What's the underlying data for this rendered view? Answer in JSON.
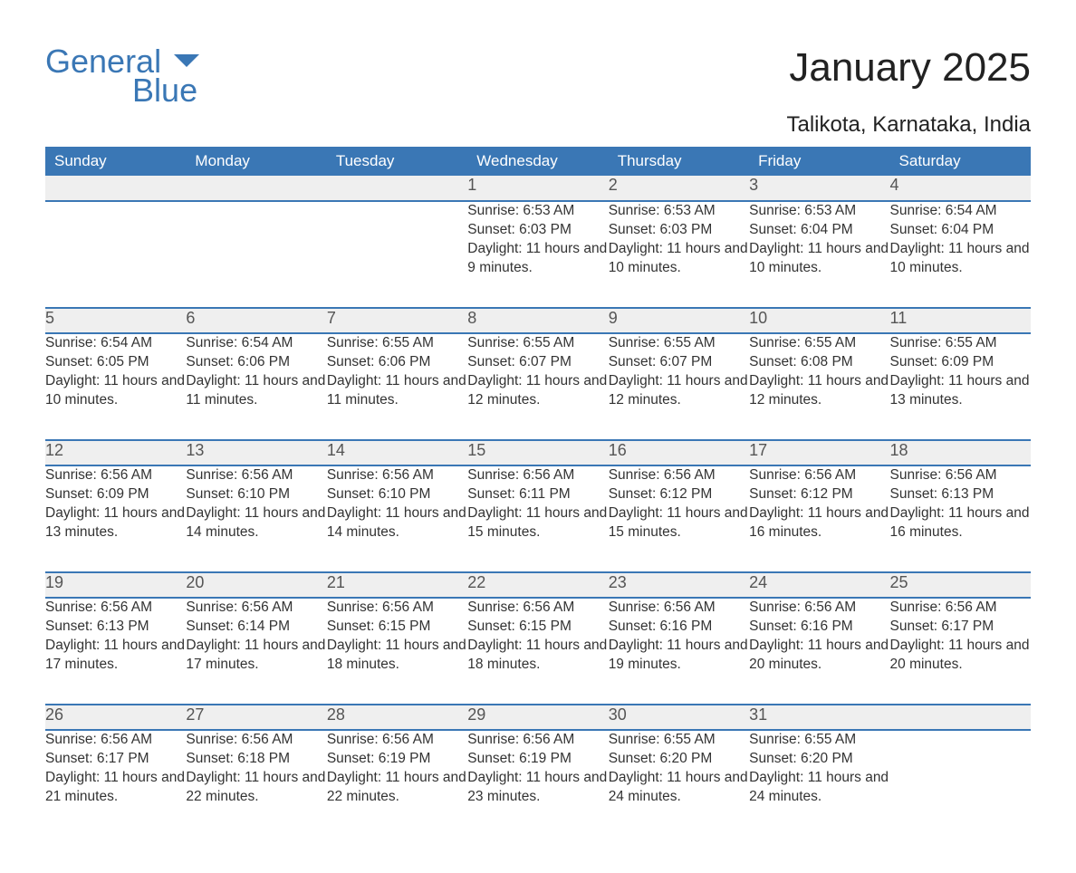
{
  "brand": {
    "top": "General",
    "bottom": "Blue",
    "logo_color": "#3a77b5"
  },
  "title": "January 2025",
  "location": "Talikota, Karnataka, India",
  "colors": {
    "header_bg": "#3a77b5",
    "header_text": "#ffffff",
    "daynum_bg": "#efefef",
    "body_text": "#333333",
    "rule": "#3a77b5",
    "page_bg": "#ffffff"
  },
  "fonts": {
    "title_size_pt": 33,
    "location_size_pt": 18,
    "weekday_size_pt": 13,
    "daynum_size_pt": 14,
    "body_size_pt": 12
  },
  "weekdays": [
    "Sunday",
    "Monday",
    "Tuesday",
    "Wednesday",
    "Thursday",
    "Friday",
    "Saturday"
  ],
  "days": {
    "1": {
      "sunrise": "6:53 AM",
      "sunset": "6:03 PM",
      "daylight": "11 hours and 9 minutes."
    },
    "2": {
      "sunrise": "6:53 AM",
      "sunset": "6:03 PM",
      "daylight": "11 hours and 10 minutes."
    },
    "3": {
      "sunrise": "6:53 AM",
      "sunset": "6:04 PM",
      "daylight": "11 hours and 10 minutes."
    },
    "4": {
      "sunrise": "6:54 AM",
      "sunset": "6:04 PM",
      "daylight": "11 hours and 10 minutes."
    },
    "5": {
      "sunrise": "6:54 AM",
      "sunset": "6:05 PM",
      "daylight": "11 hours and 10 minutes."
    },
    "6": {
      "sunrise": "6:54 AM",
      "sunset": "6:06 PM",
      "daylight": "11 hours and 11 minutes."
    },
    "7": {
      "sunrise": "6:55 AM",
      "sunset": "6:06 PM",
      "daylight": "11 hours and 11 minutes."
    },
    "8": {
      "sunrise": "6:55 AM",
      "sunset": "6:07 PM",
      "daylight": "11 hours and 12 minutes."
    },
    "9": {
      "sunrise": "6:55 AM",
      "sunset": "6:07 PM",
      "daylight": "11 hours and 12 minutes."
    },
    "10": {
      "sunrise": "6:55 AM",
      "sunset": "6:08 PM",
      "daylight": "11 hours and 12 minutes."
    },
    "11": {
      "sunrise": "6:55 AM",
      "sunset": "6:09 PM",
      "daylight": "11 hours and 13 minutes."
    },
    "12": {
      "sunrise": "6:56 AM",
      "sunset": "6:09 PM",
      "daylight": "11 hours and 13 minutes."
    },
    "13": {
      "sunrise": "6:56 AM",
      "sunset": "6:10 PM",
      "daylight": "11 hours and 14 minutes."
    },
    "14": {
      "sunrise": "6:56 AM",
      "sunset": "6:10 PM",
      "daylight": "11 hours and 14 minutes."
    },
    "15": {
      "sunrise": "6:56 AM",
      "sunset": "6:11 PM",
      "daylight": "11 hours and 15 minutes."
    },
    "16": {
      "sunrise": "6:56 AM",
      "sunset": "6:12 PM",
      "daylight": "11 hours and 15 minutes."
    },
    "17": {
      "sunrise": "6:56 AM",
      "sunset": "6:12 PM",
      "daylight": "11 hours and 16 minutes."
    },
    "18": {
      "sunrise": "6:56 AM",
      "sunset": "6:13 PM",
      "daylight": "11 hours and 16 minutes."
    },
    "19": {
      "sunrise": "6:56 AM",
      "sunset": "6:13 PM",
      "daylight": "11 hours and 17 minutes."
    },
    "20": {
      "sunrise": "6:56 AM",
      "sunset": "6:14 PM",
      "daylight": "11 hours and 17 minutes."
    },
    "21": {
      "sunrise": "6:56 AM",
      "sunset": "6:15 PM",
      "daylight": "11 hours and 18 minutes."
    },
    "22": {
      "sunrise": "6:56 AM",
      "sunset": "6:15 PM",
      "daylight": "11 hours and 18 minutes."
    },
    "23": {
      "sunrise": "6:56 AM",
      "sunset": "6:16 PM",
      "daylight": "11 hours and 19 minutes."
    },
    "24": {
      "sunrise": "6:56 AM",
      "sunset": "6:16 PM",
      "daylight": "11 hours and 20 minutes."
    },
    "25": {
      "sunrise": "6:56 AM",
      "sunset": "6:17 PM",
      "daylight": "11 hours and 20 minutes."
    },
    "26": {
      "sunrise": "6:56 AM",
      "sunset": "6:17 PM",
      "daylight": "11 hours and 21 minutes."
    },
    "27": {
      "sunrise": "6:56 AM",
      "sunset": "6:18 PM",
      "daylight": "11 hours and 22 minutes."
    },
    "28": {
      "sunrise": "6:56 AM",
      "sunset": "6:19 PM",
      "daylight": "11 hours and 22 minutes."
    },
    "29": {
      "sunrise": "6:56 AM",
      "sunset": "6:19 PM",
      "daylight": "11 hours and 23 minutes."
    },
    "30": {
      "sunrise": "6:55 AM",
      "sunset": "6:20 PM",
      "daylight": "11 hours and 24 minutes."
    },
    "31": {
      "sunrise": "6:55 AM",
      "sunset": "6:20 PM",
      "daylight": "11 hours and 24 minutes."
    }
  },
  "labels": {
    "sunrise": "Sunrise: ",
    "sunset": "Sunset: ",
    "daylight": "Daylight: "
  },
  "layout": {
    "first_weekday_index": 3,
    "num_days": 31,
    "columns": 7
  }
}
